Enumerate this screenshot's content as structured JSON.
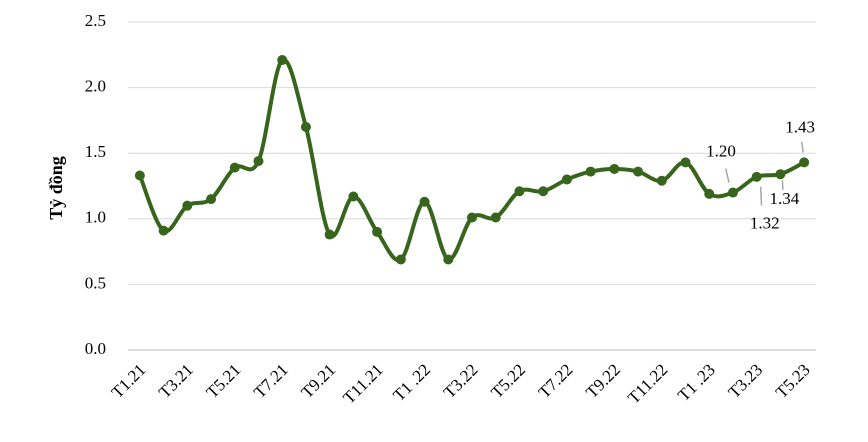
{
  "chart_data": {
    "type": "line",
    "y_label": "Tỷ đồng",
    "categories": [
      "T1.21",
      null,
      "T3.21",
      null,
      "T5.21",
      null,
      "T7.21",
      null,
      "T9.21",
      null,
      "T11.21",
      null,
      "T1 .22",
      null,
      "T3.22",
      null,
      "T5.22",
      null,
      "T7.22",
      null,
      "T9.22",
      null,
      "T11.22",
      null,
      "T1 .23",
      null,
      "T3.23",
      null,
      "T5.23"
    ],
    "series": [
      {
        "color": "#38651c",
        "values": [
          1.33,
          0.91,
          1.1,
          1.15,
          1.39,
          1.44,
          2.21,
          1.7,
          0.88,
          1.17,
          0.9,
          0.69,
          1.13,
          0.69,
          1.01,
          1.01,
          1.21,
          1.21,
          1.3,
          1.36,
          1.38,
          1.36,
          1.29,
          1.43,
          1.19,
          1.2,
          1.32,
          1.34,
          1.43
        ],
        "value_labels": [
          null,
          null,
          null,
          null,
          null,
          null,
          null,
          null,
          null,
          null,
          null,
          null,
          null,
          null,
          null,
          null,
          null,
          null,
          null,
          null,
          null,
          null,
          null,
          null,
          null,
          "1.20",
          "1.32",
          "1.34",
          "1.43"
        ]
      }
    ],
    "ylim": [
      0,
      2.5
    ],
    "yticks": [
      {
        "value": 0,
        "label": "0.0"
      },
      {
        "value": 0.5,
        "label": "0.5"
      },
      {
        "value": 1,
        "label": "1.0"
      },
      {
        "value": 1.5,
        "label": "1.5"
      },
      {
        "value": 2,
        "label": "2.0"
      },
      {
        "value": 2.5,
        "label": "2.5"
      }
    ],
    "grid": true
  }
}
